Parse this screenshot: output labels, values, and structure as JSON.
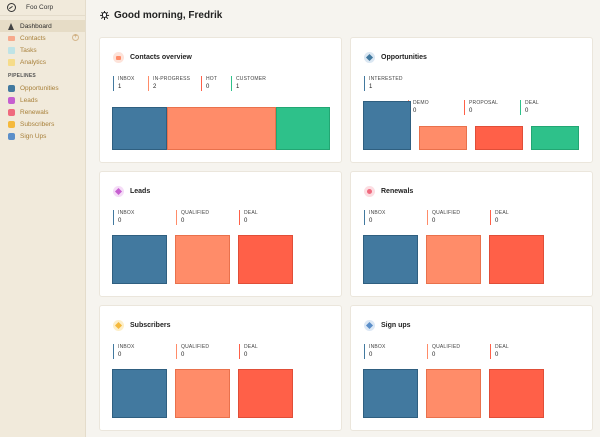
{
  "sidebar": {
    "brand": "Foo Corp",
    "items": [
      {
        "label": "Dashboard",
        "icon": "house-icon",
        "color": "#444444",
        "active": true
      },
      {
        "label": "Contacts",
        "icon": "contacts-icon",
        "color": "#f7a98c",
        "active": false
      },
      {
        "label": "Tasks",
        "icon": "tasks-icon",
        "color": "#bfe3e6",
        "active": false
      },
      {
        "label": "Analytics",
        "icon": "analytics-icon",
        "color": "#f6dc8a",
        "active": false
      }
    ],
    "section_label": "PIPELINES",
    "pipelines": [
      {
        "label": "Opportunities",
        "icon": "opportunities-icon",
        "color": "#42799f"
      },
      {
        "label": "Leads",
        "icon": "leads-icon",
        "color": "#c65fd0"
      },
      {
        "label": "Renewals",
        "icon": "renewals-icon",
        "color": "#ef6a7e"
      },
      {
        "label": "Subscribers",
        "icon": "subscribers-icon",
        "color": "#f5b93c"
      },
      {
        "label": "Sign Ups",
        "icon": "sign-ups-icon",
        "color": "#5c8fc9"
      }
    ]
  },
  "header": {
    "greeting": "Good morning, Fredrik",
    "icon": "sun-icon"
  },
  "cards": {
    "contacts": {
      "title": "Contacts overview",
      "badge_color": "#fde3da",
      "icon_color": "#ff8c69",
      "stats": [
        {
          "label": "INBOX",
          "value": "1"
        },
        {
          "label": "IN-PROGRESS",
          "value": "2"
        },
        {
          "label": "HOT",
          "value": "0"
        },
        {
          "label": "CUSTOMER",
          "value": "1"
        }
      ]
    },
    "opportunities": {
      "title": "Opportunities",
      "badge_color": "#dbe7f2",
      "icon_color": "#42799f",
      "stats": [
        {
          "label": "INTERESTED",
          "value": "1"
        },
        {
          "label": "DEMO",
          "value": "0"
        },
        {
          "label": "PROPOSAL",
          "value": "0"
        },
        {
          "label": "DEAL",
          "value": "0"
        }
      ]
    },
    "leads": {
      "title": "Leads",
      "badge_color": "#f5dcf7",
      "icon_color": "#c65fd0",
      "stats": [
        {
          "label": "INBOX",
          "value": "0"
        },
        {
          "label": "QUALIFIED",
          "value": "0"
        },
        {
          "label": "DEAL",
          "value": "0"
        }
      ]
    },
    "renewals": {
      "title": "Renewals",
      "badge_color": "#fcdde2",
      "icon_color": "#ef6a7e",
      "stats": [
        {
          "label": "INBOX",
          "value": "0"
        },
        {
          "label": "QUALIFIED",
          "value": "0"
        },
        {
          "label": "DEAL",
          "value": "0"
        }
      ]
    },
    "subscribers": {
      "title": "Subscribers",
      "badge_color": "#fdefc9",
      "icon_color": "#f5b93c",
      "stats": [
        {
          "label": "INBOX",
          "value": "0"
        },
        {
          "label": "QUALIFIED",
          "value": "0"
        },
        {
          "label": "DEAL",
          "value": "0"
        }
      ]
    },
    "signups": {
      "title": "Sign ups",
      "badge_color": "#dce8f5",
      "icon_color": "#5c8fc9",
      "stats": [
        {
          "label": "INBOX",
          "value": "0"
        },
        {
          "label": "QUALIFIED",
          "value": "0"
        },
        {
          "label": "DEAL",
          "value": "0"
        }
      ]
    }
  },
  "colors": {
    "blue": "#42799f",
    "salmon": "#ff8c69",
    "red": "#ff6048",
    "green": "#2ec18a"
  }
}
